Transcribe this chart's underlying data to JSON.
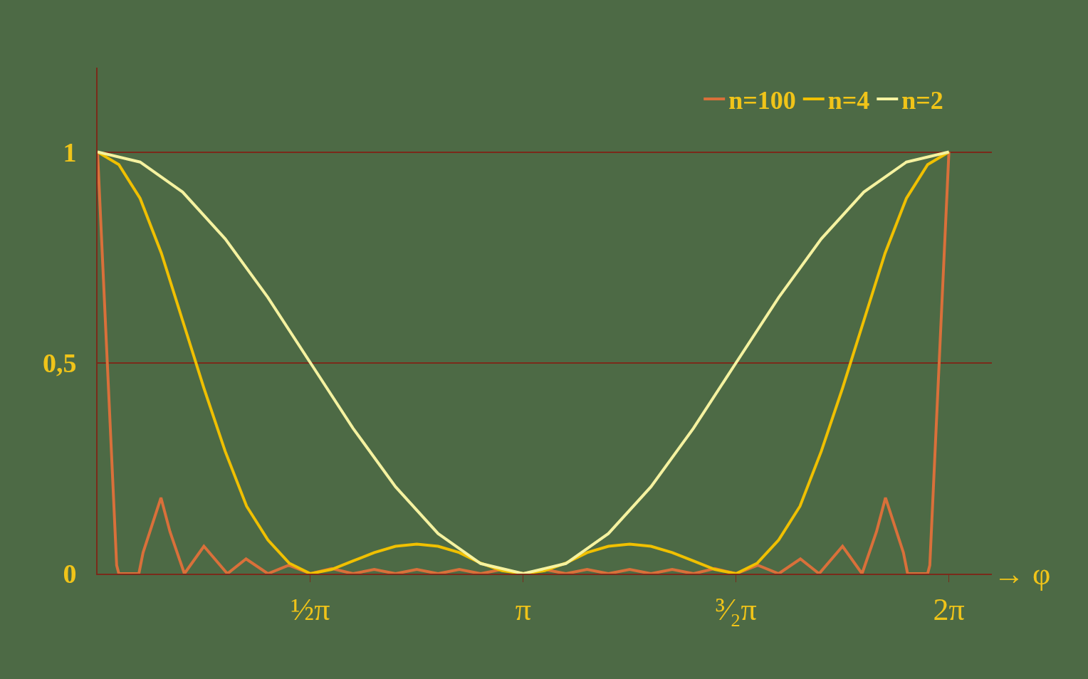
{
  "chart_data": {
    "type": "line",
    "xlabel": "→ φ",
    "xlim": [
      0,
      6.6
    ],
    "ylim": [
      0,
      1.2
    ],
    "xticks": [
      {
        "value": 1.571,
        "label": "½π"
      },
      {
        "value": 3.142,
        "label": "π"
      },
      {
        "value": 4.712,
        "label": "³⁄₂π"
      },
      {
        "value": 6.283,
        "label": "2π"
      }
    ],
    "yticks": [
      0,
      {
        "value": 0.5,
        "label": "0,5"
      },
      1
    ],
    "grid": "y",
    "legend": "top right",
    "marker": "none",
    "line_style": "solid",
    "series": [
      {
        "name": "n=100",
        "color": "#d9703a",
        "x": [
          0,
          0.072,
          0.141,
          0.157,
          0.305,
          0.336,
          0.468,
          0.534,
          0.641,
          0.785,
          0.958,
          1.096,
          1.257,
          1.411,
          1.571,
          1.728,
          1.885,
          2.042,
          2.199,
          2.356,
          2.513,
          2.67,
          2.827,
          2.985,
          3.142,
          3.299,
          3.456,
          3.613,
          3.77,
          3.927,
          4.084,
          4.241,
          4.398,
          4.555,
          4.712,
          4.873,
          5.027,
          5.187,
          5.325,
          5.498,
          5.642,
          5.749,
          5.815,
          5.947,
          5.978,
          6.126,
          6.142,
          6.211,
          6.283
        ],
        "values": [
          1,
          0.5,
          0.02,
          0,
          0,
          0.05,
          0.18,
          0.1,
          0,
          0.065,
          0,
          0.035,
          0,
          0.02,
          0,
          0.012,
          0,
          0.01,
          0,
          0.01,
          0,
          0.01,
          0,
          0.01,
          0,
          0.01,
          0,
          0.01,
          0,
          0.01,
          0,
          0.01,
          0,
          0.012,
          0,
          0.02,
          0,
          0.035,
          0,
          0.065,
          0,
          0.1,
          0.18,
          0.05,
          0,
          0,
          0.02,
          0.5,
          1
        ]
      },
      {
        "name": "n=4",
        "color": "#f0c000",
        "x": [
          0,
          0.157,
          0.314,
          0.471,
          0.628,
          0.785,
          0.942,
          1.1,
          1.257,
          1.414,
          1.571,
          1.728,
          1.885,
          2.042,
          2.199,
          2.356,
          2.513,
          2.67,
          2.827,
          2.985,
          3.142,
          3.299,
          3.456,
          3.613,
          3.77,
          3.927,
          4.084,
          4.241,
          4.398,
          4.555,
          4.712,
          4.869,
          5.027,
          5.184,
          5.341,
          5.498,
          5.655,
          5.812,
          5.969,
          6.126,
          6.283
        ],
        "values": [
          1,
          0.97,
          0.89,
          0.76,
          0.6,
          0.44,
          0.29,
          0.16,
          0.08,
          0.025,
          0,
          0.01,
          0.03,
          0.05,
          0.065,
          0.07,
          0.065,
          0.05,
          0.025,
          0.007,
          0,
          0.007,
          0.025,
          0.05,
          0.065,
          0.07,
          0.065,
          0.05,
          0.03,
          0.01,
          0,
          0.025,
          0.08,
          0.16,
          0.29,
          0.44,
          0.6,
          0.76,
          0.89,
          0.97,
          1
        ]
      },
      {
        "name": "n=2",
        "color": "#f5f2a0",
        "x": [
          0,
          0.314,
          0.628,
          0.942,
          1.257,
          1.571,
          1.885,
          2.199,
          2.513,
          2.827,
          3.142,
          3.456,
          3.77,
          4.084,
          4.398,
          4.712,
          5.027,
          5.341,
          5.655,
          5.969,
          6.283
        ],
        "values": [
          1,
          0.976,
          0.905,
          0.794,
          0.655,
          0.5,
          0.345,
          0.206,
          0.095,
          0.024,
          0,
          0.024,
          0.095,
          0.206,
          0.345,
          0.5,
          0.655,
          0.794,
          0.905,
          0.976,
          1
        ]
      }
    ]
  }
}
